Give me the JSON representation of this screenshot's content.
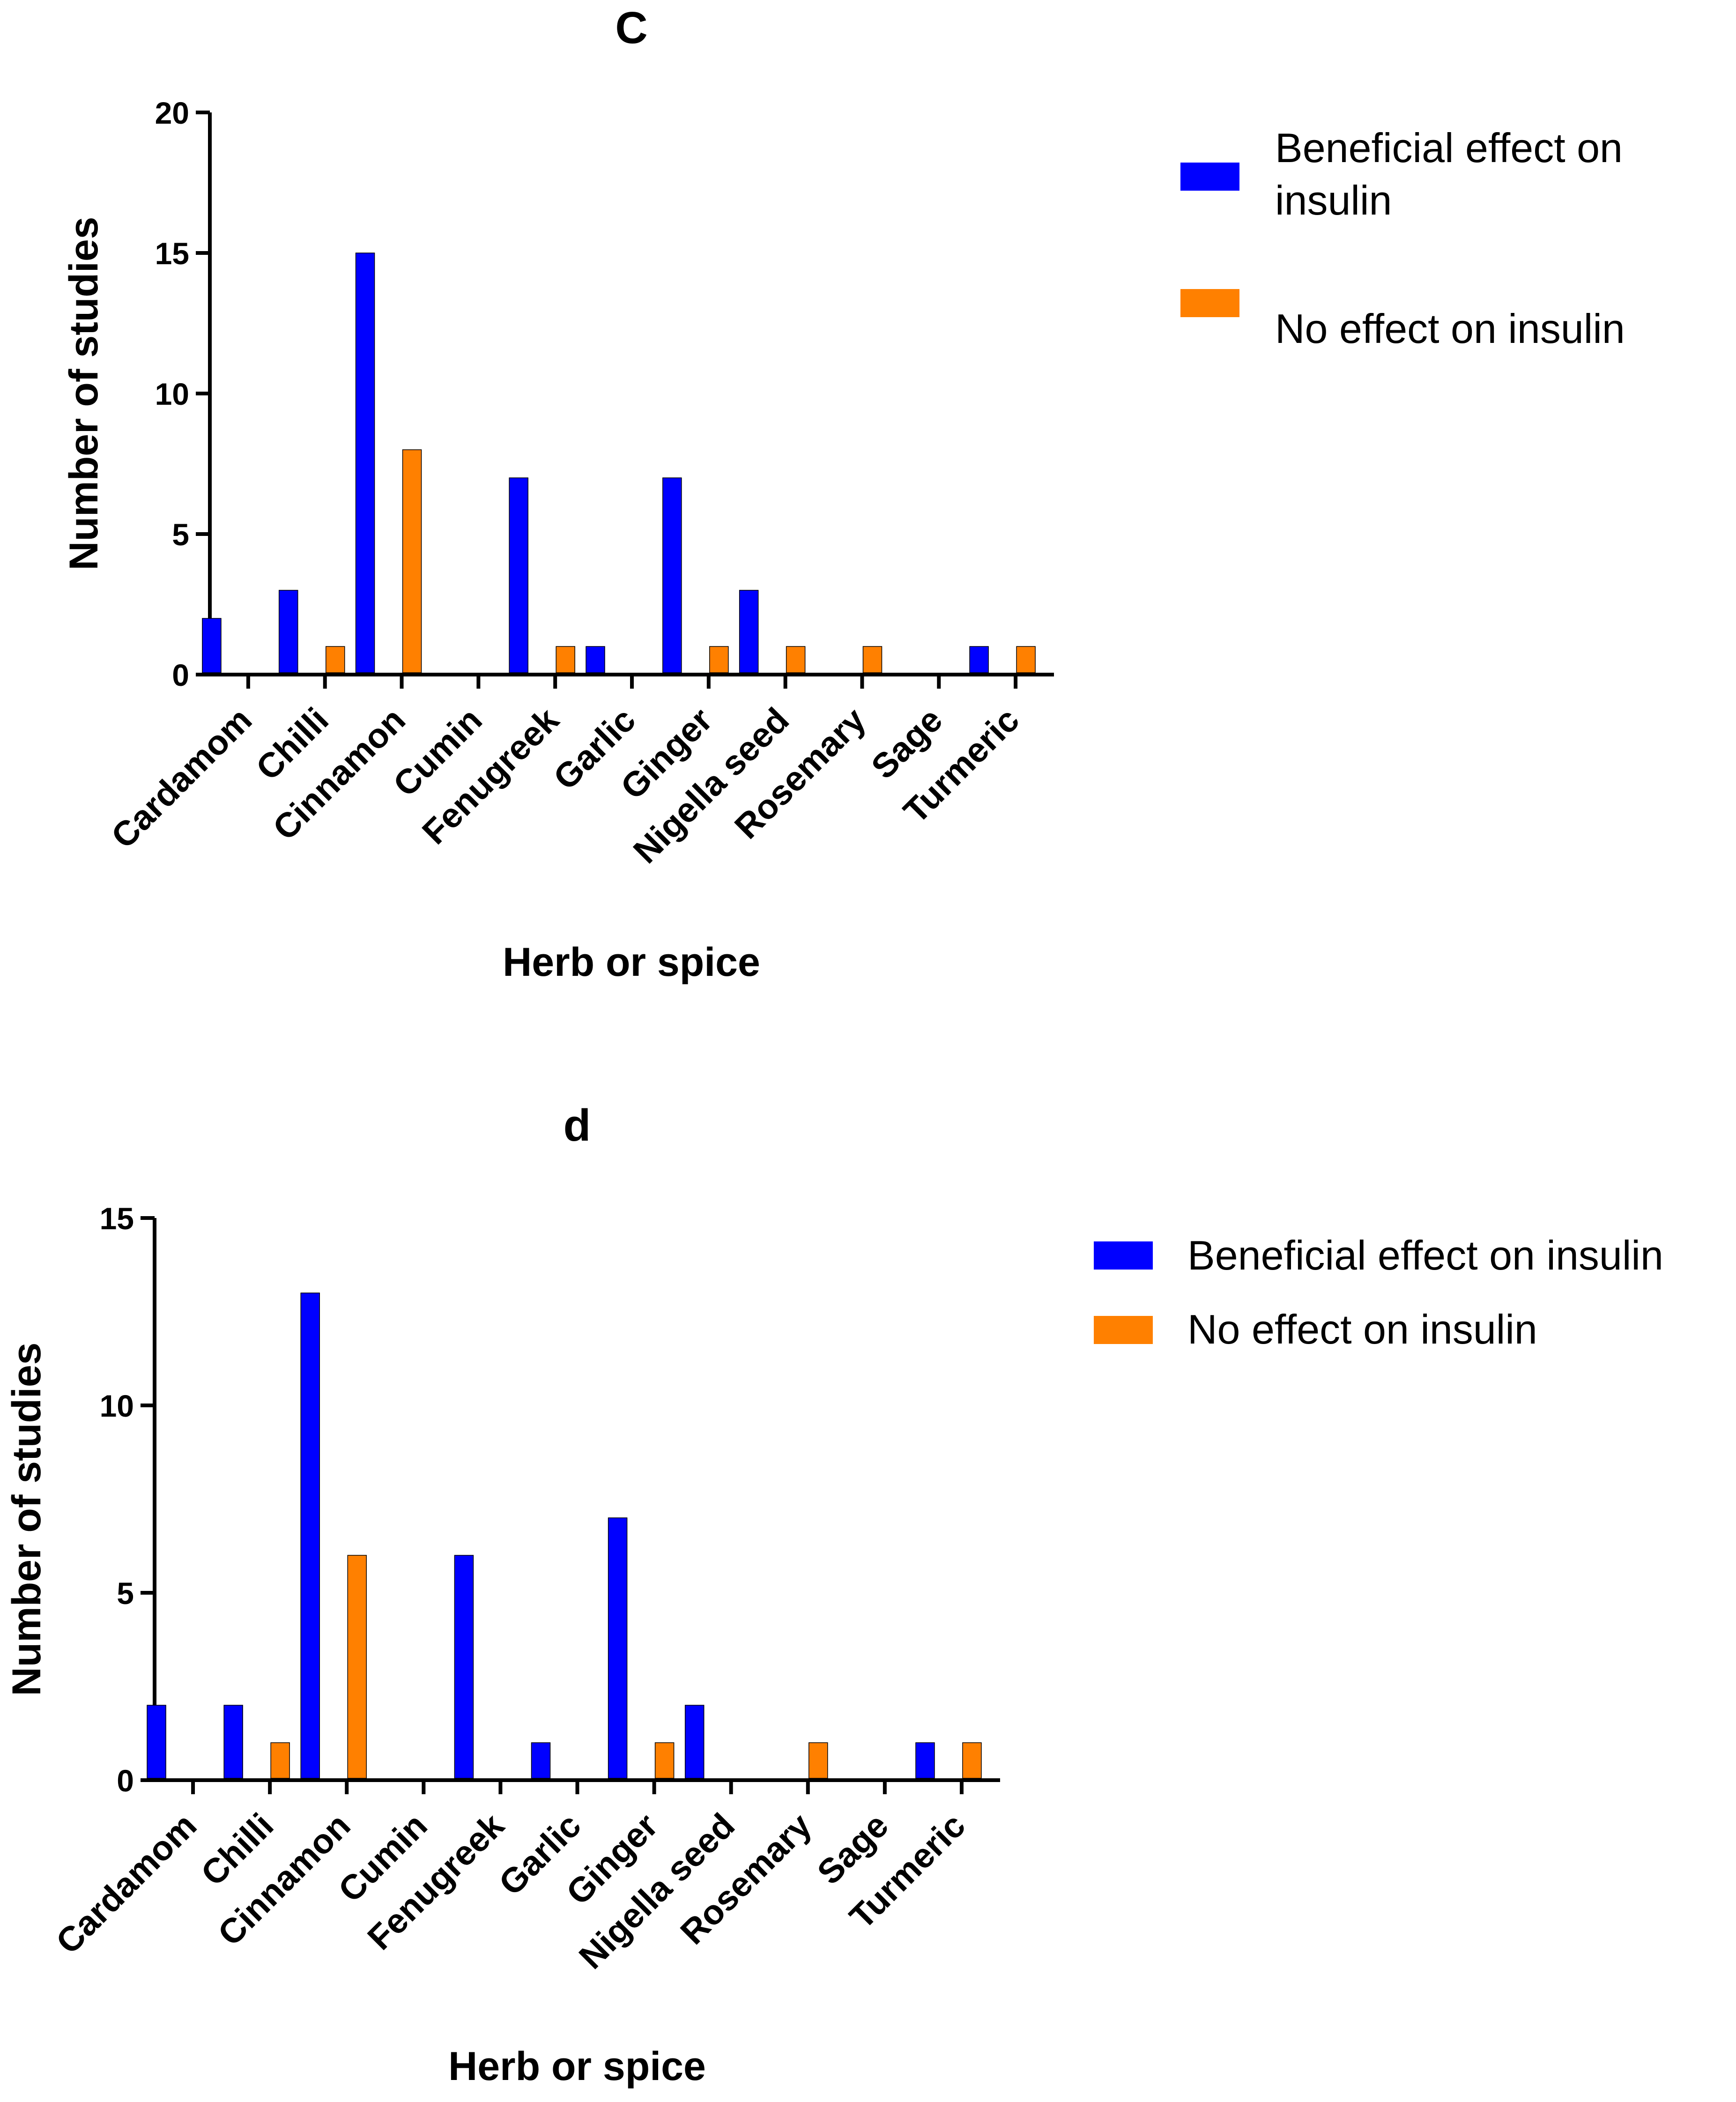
{
  "chart_data": [
    {
      "type": "bar",
      "title": "C",
      "xlabel": "Herb or spice",
      "ylabel": "Number of studies",
      "ylim": [
        0,
        20
      ],
      "yticks": [
        0,
        5,
        10,
        15,
        20
      ],
      "categories": [
        "Cardamom",
        "Chilli",
        "Cinnamon",
        "Cumin",
        "Fenugreek",
        "Garlic",
        "Ginger",
        "Nigella seed",
        "Rosemary",
        "Sage",
        "Turmeric"
      ],
      "series": [
        {
          "name": "Beneficial effect on insulin",
          "color": "#0000FF",
          "values": [
            2,
            3,
            15,
            0,
            7,
            1,
            7,
            3,
            0,
            0,
            1
          ]
        },
        {
          "name": "No effect on insulin",
          "color": "#FF8000",
          "values": [
            0,
            1,
            8,
            0,
            1,
            0,
            1,
            1,
            1,
            0,
            1
          ]
        }
      ],
      "legend": {
        "position": "top-right",
        "entries": [
          {
            "lines": [
              "Beneficial effect on",
              "insulin"
            ],
            "color": "#0000FF"
          },
          {
            "lines": [
              "No effect on insulin"
            ],
            "color": "#FF8000"
          }
        ]
      }
    },
    {
      "type": "bar",
      "title": "d",
      "xlabel": "Herb or spice",
      "ylabel": "Number of studies",
      "ylim": [
        0,
        15
      ],
      "yticks": [
        0,
        5,
        10,
        15
      ],
      "categories": [
        "Cardamom",
        "Chilli",
        "Cinnamon",
        "Cumin",
        "Fenugreek",
        "Garlic",
        "Ginger",
        "Nigella seed",
        "Rosemary",
        "Sage",
        "Turmeric"
      ],
      "series": [
        {
          "name": "Beneficial effect on insulin",
          "color": "#0000FF",
          "values": [
            2,
            2,
            13,
            0,
            6,
            1,
            7,
            2,
            0,
            0,
            1
          ]
        },
        {
          "name": "No effect on insulin",
          "color": "#FF8000",
          "values": [
            0,
            1,
            6,
            0,
            0,
            0,
            1,
            0,
            1,
            0,
            1
          ]
        }
      ],
      "legend": {
        "position": "top-right",
        "entries": [
          {
            "lines": [
              "Beneficial effect on insulin"
            ],
            "color": "#0000FF"
          },
          {
            "lines": [
              "No effect on insulin"
            ],
            "color": "#FF8000"
          }
        ]
      }
    }
  ]
}
